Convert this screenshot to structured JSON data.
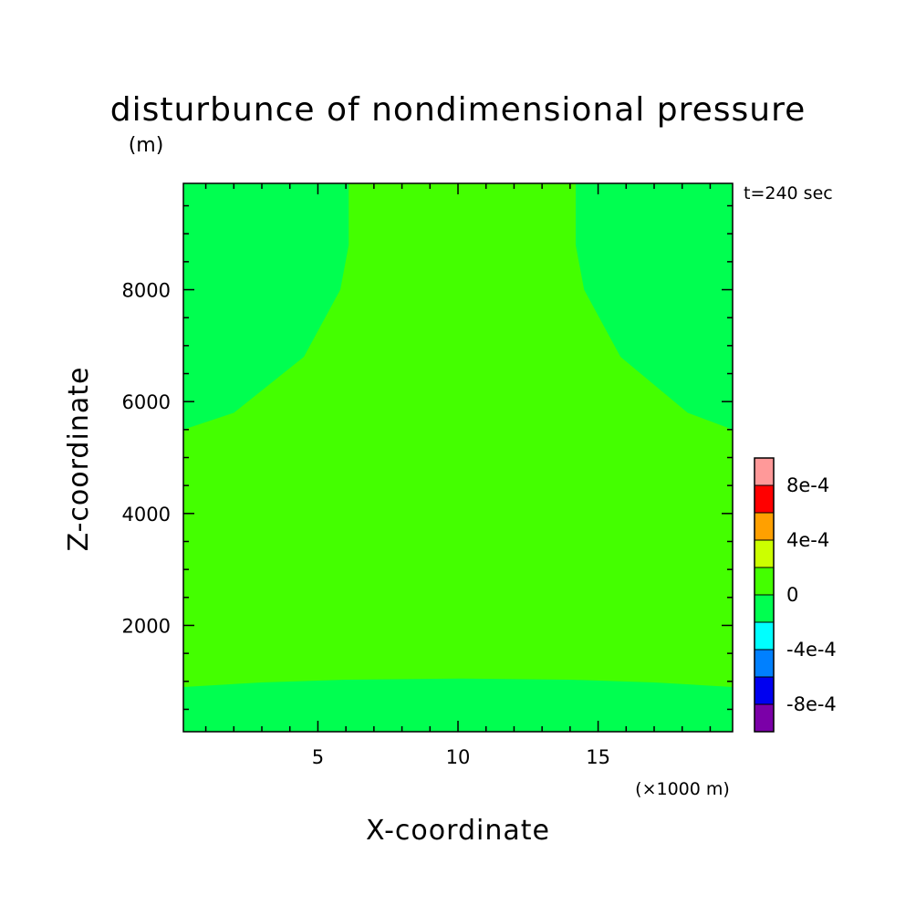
{
  "chart_data": {
    "type": "heatmap",
    "title": "disturbunce of nondimensional pressure",
    "title_unit": "(m)",
    "time_label": "t=240 sec",
    "xlabel": "X-coordinate",
    "x_unit": "(×1000 m)",
    "ylabel": "Z-coordinate",
    "xlim": [
      0.2,
      19.8
    ],
    "ylim": [
      100,
      9900
    ],
    "x_ticks": [
      5,
      10,
      15
    ],
    "x_tick_labels": [
      "5",
      "10",
      "15"
    ],
    "y_ticks": [
      2000,
      4000,
      6000,
      8000
    ],
    "y_tick_labels": [
      "2000",
      "4000",
      "6000",
      "8000"
    ],
    "x_minor_step": 1,
    "y_minor_step": 500,
    "regions": [
      {
        "level_range": "-2e-4 to 0",
        "color": "#00ff50",
        "area": "background"
      },
      {
        "level_range": "0 to 2e-4",
        "color": "#44ff00",
        "area": "central column above boundary layer"
      }
    ],
    "boundary_contour": {
      "lower": [
        [
          0.2,
          900
        ],
        [
          3,
          980
        ],
        [
          6,
          1030
        ],
        [
          10,
          1050
        ],
        [
          14,
          1030
        ],
        [
          17,
          980
        ],
        [
          19.8,
          900
        ]
      ],
      "upper_left": [
        [
          0.2,
          5500
        ],
        [
          2,
          5800
        ],
        [
          4.5,
          6800
        ],
        [
          5.8,
          8000
        ],
        [
          6.1,
          8800
        ],
        [
          6.1,
          9900
        ]
      ],
      "upper_right": [
        [
          14.2,
          9900
        ],
        [
          14.2,
          8800
        ],
        [
          14.5,
          8000
        ],
        [
          15.8,
          6800
        ],
        [
          18.2,
          5800
        ],
        [
          19.8,
          5500
        ]
      ]
    },
    "colorbar": {
      "colors": [
        "#7b00a8",
        "#0000f0",
        "#0080ff",
        "#00ffff",
        "#00ff50",
        "#44ff00",
        "#ccff00",
        "#ffa000",
        "#ff0000",
        "#ff9999"
      ],
      "labels": [
        "-8e-4",
        "-4e-4",
        "0",
        "4e-4",
        "8e-4"
      ]
    }
  }
}
